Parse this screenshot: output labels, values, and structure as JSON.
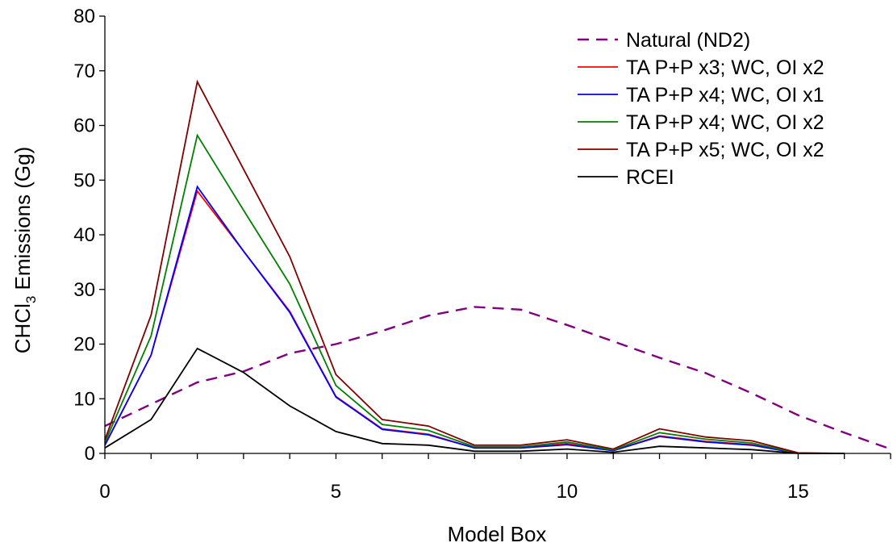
{
  "chart_data": {
    "type": "line",
    "xlabel": "Model Box",
    "ylabel": {
      "prefix": "CHCl",
      "subscript": "3",
      "suffix": " Emissions (Gg)"
    },
    "xlim": [
      0,
      17
    ],
    "ylim": [
      0,
      80
    ],
    "x_ticks": [
      0,
      5,
      10,
      15
    ],
    "y_ticks": [
      0,
      10,
      20,
      30,
      40,
      50,
      60,
      70,
      80
    ],
    "x_minor_step": 1,
    "grid": false,
    "legend_position": "top-right",
    "series": [
      {
        "name": "Natural (ND2)",
        "color": "#800080",
        "dash": true,
        "x": [
          0,
          1,
          2,
          3,
          4,
          5,
          6,
          7,
          8,
          9,
          10,
          11,
          12,
          13,
          14,
          15,
          16,
          17
        ],
        "values": [
          5,
          9,
          13,
          15,
          18.3,
          20,
          22.4,
          25.2,
          26.8,
          26.3,
          23.5,
          20.5,
          17.5,
          14.7,
          11,
          7,
          3.8,
          0.8
        ]
      },
      {
        "name": "TA P+P x3; WC, OI x2",
        "color": "#ff0000",
        "dash": false,
        "x": [
          0,
          1,
          2,
          3,
          4,
          5,
          6,
          7,
          8,
          9,
          10,
          11,
          12,
          13,
          14,
          15,
          16
        ],
        "values": [
          1.5,
          18,
          48,
          37,
          26,
          10.4,
          4.5,
          3.5,
          1,
          1,
          1.8,
          0.5,
          3.2,
          2.2,
          1.6,
          0,
          0
        ]
      },
      {
        "name": "TA P+P x4; WC, OI x1",
        "color": "#0000ff",
        "dash": false,
        "x": [
          0,
          1,
          2,
          3,
          4,
          5,
          6,
          7,
          8,
          9,
          10,
          11,
          12,
          13,
          14,
          15,
          16
        ],
        "values": [
          1.5,
          18,
          48.8,
          37,
          25.8,
          10.3,
          4.4,
          3.4,
          1,
          1,
          1.6,
          0.5,
          3.1,
          2.1,
          1.5,
          0,
          0
        ]
      },
      {
        "name": "TA P+P x4; WC, OI x2",
        "color": "#008000",
        "dash": false,
        "x": [
          0,
          1,
          2,
          3,
          4,
          5,
          6,
          7,
          8,
          9,
          10,
          11,
          12,
          13,
          14,
          15,
          16
        ],
        "values": [
          2,
          21.5,
          58.2,
          44.5,
          31,
          12.4,
          5.3,
          4.2,
          1.2,
          1.2,
          2.1,
          0.6,
          3.8,
          2.6,
          1.9,
          0,
          0
        ]
      },
      {
        "name": "TA P+P x5; WC, OI x2",
        "color": "#800000",
        "dash": false,
        "x": [
          0,
          1,
          2,
          3,
          4,
          5,
          6,
          7,
          8,
          9,
          10,
          11,
          12,
          13,
          14,
          15,
          16
        ],
        "values": [
          2.5,
          25.3,
          68,
          52,
          36,
          14.4,
          6.2,
          5,
          1.5,
          1.5,
          2.5,
          0.8,
          4.5,
          3,
          2.3,
          0.1,
          0
        ]
      },
      {
        "name": "RCEI",
        "color": "#000000",
        "dash": false,
        "x": [
          0,
          1,
          2,
          3,
          4,
          5,
          6,
          7,
          8,
          9,
          10,
          11,
          12,
          13,
          14,
          15,
          16
        ],
        "values": [
          1,
          6.2,
          19.2,
          14.8,
          8.7,
          4,
          1.8,
          1.5,
          0.4,
          0.4,
          0.8,
          0.2,
          1.3,
          1,
          0.7,
          0,
          0
        ]
      }
    ]
  }
}
